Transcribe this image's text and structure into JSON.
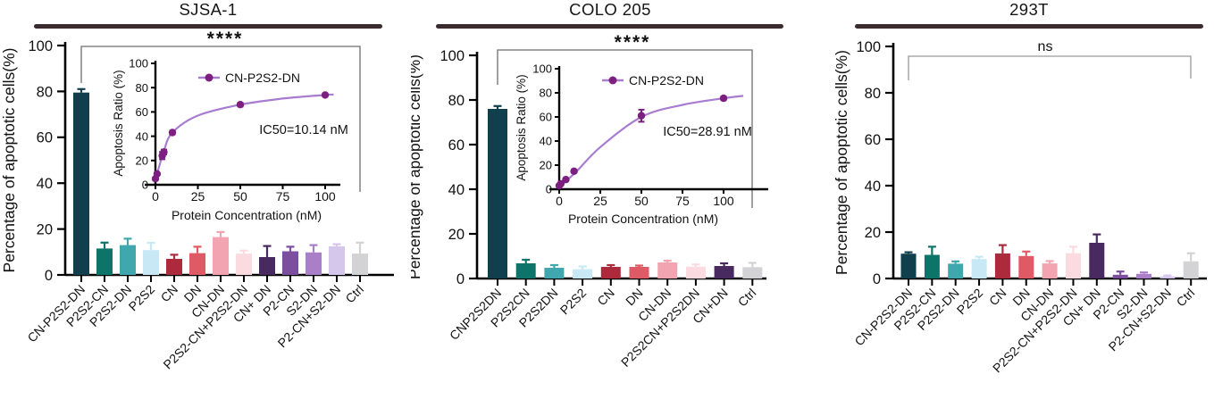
{
  "figure": {
    "panel_count": 3
  },
  "chart_data": [
    {
      "type": "bar",
      "title": "SJSA-1",
      "ylabel": "Percentage of apoptotic cells(%)",
      "ylim": [
        0,
        100
      ],
      "yticks": [
        0,
        20,
        40,
        60,
        80,
        100
      ],
      "significance": "****",
      "categories": [
        "CN-P2S2-DN",
        "P2S2-CN",
        "P2S2-DN",
        "P2S2",
        "CN",
        "DN",
        "CN-DN",
        "P2S2-CN+P2S2-DN",
        "CN+ DN",
        "P2-CN",
        "S2-DN",
        "P2-CN+S2-DN",
        "Ctrl"
      ],
      "values": [
        79.5,
        11.5,
        13,
        10.8,
        7,
        9.5,
        16.5,
        9.3,
        7.8,
        10.3,
        9.8,
        12.5,
        9.3
      ],
      "errors": [
        1.5,
        2.6,
        2.8,
        3.2,
        1.8,
        2.8,
        2.2,
        1.3,
        4.8,
        2,
        3.2,
        0.9,
        4.8
      ],
      "bar_colors": [
        "#103f4d",
        "#0c7468",
        "#3fa7ad",
        "#c9e8f6",
        "#ad2a3c",
        "#de5a64",
        "#f2a4b1",
        "#fbdbe0",
        "#482a60",
        "#7b4f9e",
        "#a980c7",
        "#d5c6ec",
        "#d3d3d5"
      ],
      "inset": {
        "type": "line",
        "legend": "CN-P2S2-DN",
        "annotation": "IC50=10.14 nM",
        "xlabel": "Protein Concentration (nM)",
        "ylabel": "Apoptosis Ratio (%)",
        "xlim": [
          0,
          108
        ],
        "ylim": [
          0,
          100
        ],
        "xticks": [
          0,
          25,
          50,
          75,
          100
        ],
        "yticks": [
          0,
          20,
          40,
          60,
          80,
          100
        ],
        "points": [
          [
            0,
            5
          ],
          [
            1,
            9
          ],
          [
            4,
            24
          ],
          [
            5,
            27
          ],
          [
            10,
            43
          ],
          [
            50,
            66
          ],
          [
            100,
            74
          ]
        ],
        "point_errors": [
          1,
          1,
          3,
          2,
          1.5,
          1.5,
          1
        ],
        "curve": [
          [
            0,
            4
          ],
          [
            5,
            28
          ],
          [
            10,
            43
          ],
          [
            25,
            57
          ],
          [
            50,
            66
          ],
          [
            75,
            71
          ],
          [
            100,
            74
          ],
          [
            105,
            74.3
          ]
        ],
        "line_color": "#a87cd1",
        "marker_color": "#7c1f80"
      }
    },
    {
      "type": "bar",
      "title": "COLO 205",
      "ylabel": "Percentage of apoptotic cells(%)",
      "ylim": [
        0,
        100
      ],
      "yticks": [
        0,
        20,
        40,
        60,
        80,
        100
      ],
      "significance": "****",
      "categories": [
        "CNP2S2DN",
        "P2S2CN",
        "P2S2DN",
        "P2S2",
        "CN",
        "DN",
        "CN-DN",
        "P2S2CN+P2S2DN",
        "CN+DN",
        "Ctrl"
      ],
      "values": [
        76,
        6.8,
        4.8,
        4.2,
        5.2,
        5.2,
        7.2,
        5.3,
        5.6,
        5.1
      ],
      "errors": [
        1.3,
        1.6,
        1.2,
        1.2,
        0.8,
        0.6,
        0.8,
        1.0,
        1.2,
        1.9
      ],
      "bar_colors": [
        "#103f4d",
        "#0c7468",
        "#3fa7ad",
        "#c9e8f6",
        "#ad2a3c",
        "#de5a64",
        "#f2a4b1",
        "#fbdbe0",
        "#482a60",
        "#d3d3d5"
      ],
      "inset": {
        "type": "line",
        "legend": "CN-P2S2-DN",
        "annotation": "IC50=28.91 nM",
        "xlabel": "Protein Concentration (nM)",
        "ylabel": "Apoptosis Ratio (%)",
        "xlim": [
          0,
          112
        ],
        "ylim": [
          0,
          100
        ],
        "xticks": [
          0,
          25,
          50,
          75,
          100
        ],
        "yticks": [
          0,
          20,
          40,
          60,
          80,
          100
        ],
        "points": [
          [
            0,
            3
          ],
          [
            1,
            4.5
          ],
          [
            4,
            8
          ],
          [
            9,
            15
          ],
          [
            50,
            61
          ],
          [
            100,
            75.5
          ]
        ],
        "point_errors": [
          1,
          1,
          1,
          1.2,
          5,
          1.5
        ],
        "curve": [
          [
            0,
            2
          ],
          [
            10,
            14
          ],
          [
            25,
            35
          ],
          [
            50,
            60
          ],
          [
            75,
            70
          ],
          [
            100,
            75.5
          ],
          [
            112,
            77.5
          ]
        ],
        "line_color": "#a87cd1",
        "marker_color": "#7c1f80"
      }
    },
    {
      "type": "bar",
      "title": "293T",
      "ylabel": "Percentage of apoptotic cells(%)",
      "ylim": [
        0,
        100
      ],
      "yticks": [
        0,
        20,
        40,
        60,
        80,
        100
      ],
      "significance": "ns",
      "categories": [
        "CN-P2S2-DN",
        "P2S2-CN",
        "P2S2-DN",
        "P2S2",
        "CN",
        "DN",
        "CN-DN",
        "P2S2-CN+P2S2-DN",
        "CN+ DN",
        "P2-CN",
        "S2-DN",
        "P2-CN+S2-DN",
        "Ctrl"
      ],
      "values": [
        10.7,
        10.2,
        6.4,
        8.4,
        10.8,
        9.7,
        6.5,
        10.9,
        15.4,
        1.6,
        2.0,
        0.9,
        7.4
      ],
      "errors": [
        0.6,
        3.5,
        1.0,
        1.0,
        3.6,
        1.9,
        1.0,
        2.8,
        3.6,
        1.4,
        0.6,
        0.4,
        3.5
      ],
      "bar_colors": [
        "#103f4d",
        "#0c7468",
        "#3fa7ad",
        "#c9e8f6",
        "#ad2a3c",
        "#de5a64",
        "#f2a4b1",
        "#fbdbe0",
        "#482a60",
        "#7b4f9e",
        "#a980c7",
        "#d5c6ec",
        "#d3d3d5"
      ]
    }
  ]
}
